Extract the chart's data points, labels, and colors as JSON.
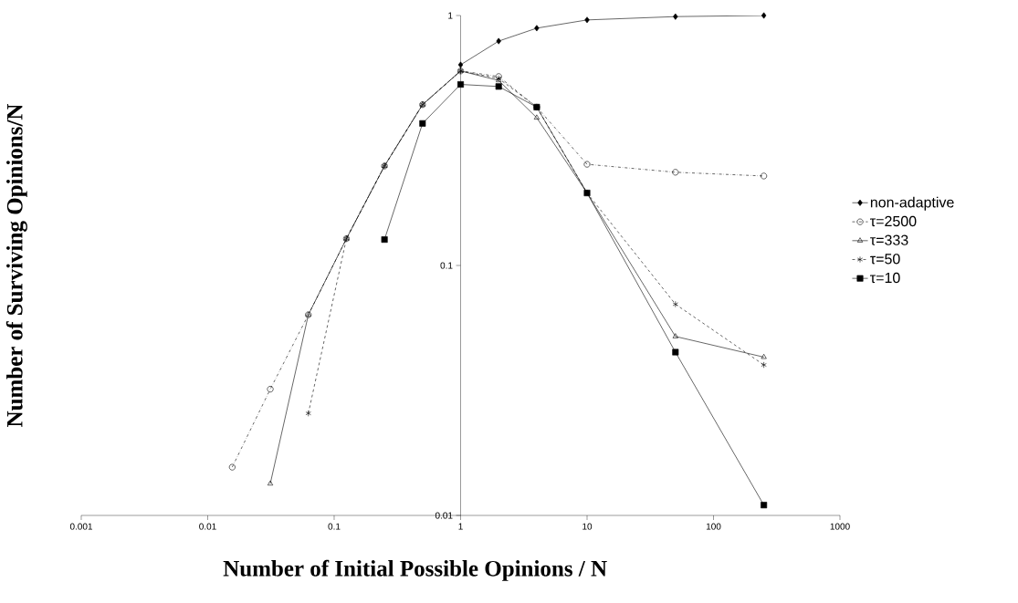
{
  "chart_data": {
    "type": "line",
    "xlabel": "Number of Initial Possible Opinions / N",
    "ylabel": "Number of Surviving Opinions/N",
    "log": "xy",
    "grid": false,
    "legend": "right",
    "xlim": [
      0.001,
      1000
    ],
    "ylim": [
      0.01,
      1
    ],
    "xticks": [
      0.001,
      0.01,
      0.1,
      1,
      10,
      100,
      1000
    ],
    "yticks": [
      0.01,
      0.1,
      1
    ],
    "x": [
      0.015625,
      0.03125,
      0.0625,
      0.125,
      0.25,
      0.5,
      1,
      2,
      4,
      10,
      50,
      250
    ],
    "series": [
      {
        "name": "non-adaptive",
        "color": "#000000",
        "marker": "diamond",
        "line_style": "solid",
        "values": [
          null,
          null,
          null,
          null,
          null,
          null,
          0.635,
          0.79,
          0.89,
          0.96,
          0.99,
          1.0
        ]
      },
      {
        "name": "τ=2500",
        "color": "#000000",
        "marker": "circle",
        "line_style": "dashdot",
        "values": [
          0.0156,
          0.032,
          0.0635,
          0.128,
          0.25,
          0.44,
          0.6,
          0.57,
          0.43,
          0.254,
          0.236,
          0.228
        ]
      },
      {
        "name": "τ=333",
        "color": "#000000",
        "marker": "triangle",
        "line_style": "solid",
        "values": [
          null,
          0.0134,
          0.0635,
          0.128,
          0.25,
          0.44,
          0.6,
          0.55,
          0.39,
          0.195,
          0.052,
          0.043
        ]
      },
      {
        "name": "τ=50",
        "color": "#000000",
        "marker": "cross",
        "line_style": "dashed",
        "values": [
          null,
          null,
          0.0256,
          0.128,
          0.25,
          0.44,
          0.6,
          0.56,
          0.43,
          0.195,
          0.07,
          0.04
        ]
      },
      {
        "name": "τ=10",
        "color": "#000000",
        "marker": "square",
        "line_style": "solid",
        "values": [
          null,
          null,
          null,
          null,
          0.127,
          0.37,
          0.53,
          0.52,
          0.43,
          0.195,
          0.045,
          0.011
        ]
      }
    ]
  }
}
